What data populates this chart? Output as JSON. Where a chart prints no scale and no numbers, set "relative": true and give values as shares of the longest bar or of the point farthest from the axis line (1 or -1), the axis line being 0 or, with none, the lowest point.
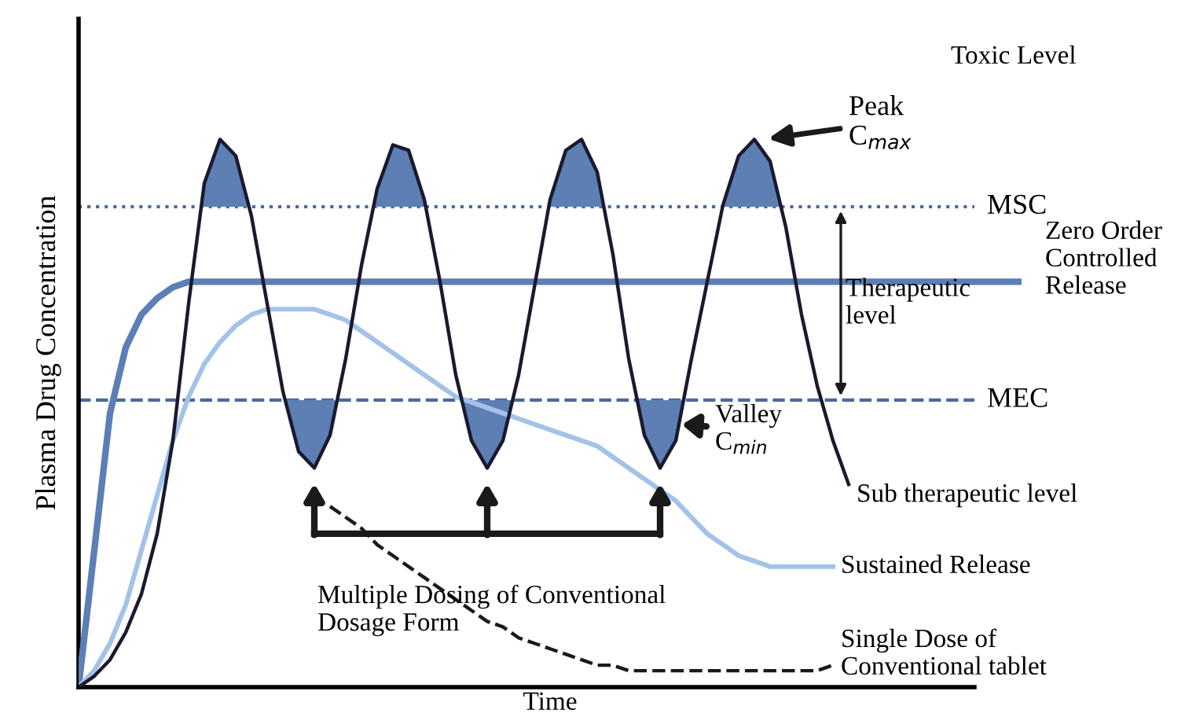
{
  "chart_data": {
    "type": "line",
    "relative": true,
    "xlabel": "Time",
    "ylabel": "Plasma Drug Concentration",
    "categories": [
      null,
      null,
      null,
      null,
      null,
      null,
      null,
      null,
      null,
      null,
      null,
      null,
      null,
      null,
      null,
      null,
      null,
      null,
      null,
      null,
      null,
      null,
      null,
      null,
      null,
      null,
      null,
      null,
      null,
      null,
      null,
      null,
      null,
      null,
      null,
      null,
      null,
      null,
      null,
      null,
      null,
      null,
      null,
      null,
      null,
      null,
      null,
      null,
      null,
      null,
      null,
      null,
      null,
      null,
      null,
      null,
      null,
      null,
      null,
      null,
      null
    ],
    "series": [
      {
        "name": "Zero Order\nControlled\nRelease",
        "color": "#5b7fb6",
        "values": [
          0,
          0.25,
          0.5,
          0.62,
          0.68,
          0.71,
          0.73,
          0.74,
          0.74,
          0.74,
          0.74,
          0.74,
          0.74,
          0.74,
          0.74,
          0.74,
          0.74,
          0.74,
          0.74,
          0.74,
          0.74,
          0.74,
          0.74,
          0.74,
          0.74,
          0.74,
          0.74,
          0.74,
          0.74,
          0.74,
          0.74,
          0.74,
          0.74,
          0.74,
          0.74,
          0.74,
          0.74,
          0.74,
          0.74,
          0.74,
          0.74,
          0.74,
          0.74,
          0.74,
          0.74,
          0.74,
          0.74,
          0.74,
          0.74,
          0.74,
          0.74,
          0.74,
          0.74,
          0.74,
          0.74,
          0.74,
          0.74,
          0.74,
          0.74,
          0.74,
          0.74
        ]
      },
      {
        "name": "Sustained Release",
        "color": "#a4c2e8",
        "values": [
          0,
          0.03,
          0.08,
          0.15,
          0.25,
          0.35,
          0.45,
          0.53,
          0.59,
          0.63,
          0.66,
          0.68,
          0.69,
          0.69,
          0.69,
          0.69,
          0.68,
          0.67,
          0.65,
          0.63,
          0.61,
          0.59,
          0.57,
          0.55,
          0.53,
          0.52,
          0.51,
          0.5,
          0.49,
          0.48,
          0.47,
          0.46,
          0.45,
          0.44,
          0.42,
          0.4,
          0.38,
          0.36,
          0.34,
          0.31,
          0.28,
          0.26,
          0.24,
          0.23,
          0.22,
          0.22,
          0.22,
          0.22,
          0.22,
          null,
          null,
          null,
          null,
          null,
          null,
          null,
          null,
          null,
          null,
          null,
          null
        ]
      },
      {
        "name": "Single Dose of\nConventional tablet",
        "color": "#1a1a1a",
        "line_style": "dashed",
        "values": [
          null,
          null,
          null,
          null,
          null,
          null,
          null,
          null,
          null,
          null,
          null,
          null,
          null,
          null,
          null,
          null,
          0.33,
          0.31,
          0.29,
          0.26,
          0.24,
          0.22,
          0.2,
          0.18,
          0.16,
          0.14,
          0.12,
          0.11,
          0.09,
          0.08,
          0.07,
          0.06,
          0.05,
          0.04,
          0.04,
          0.03,
          0.03,
          0.03,
          0.03,
          0.03,
          0.03,
          0.03,
          0.03,
          0.03,
          0.03,
          0.03,
          0.03,
          0.03,
          0.04,
          null,
          null,
          null,
          null,
          null,
          null,
          null,
          null,
          null,
          null,
          null,
          null
        ]
      },
      {
        "color": "#1a1a2e",
        "values": [
          0,
          0.02,
          0.05,
          0.1,
          0.17,
          0.28,
          0.45,
          0.7,
          0.92,
          1.0,
          0.97,
          0.86,
          0.7,
          0.54,
          0.43,
          0.4,
          0.46,
          0.6,
          0.77,
          0.91,
          0.99,
          0.98,
          0.89,
          0.74,
          0.57,
          0.45,
          0.4,
          0.45,
          0.57,
          0.73,
          0.89,
          0.98,
          1.0,
          0.94,
          0.79,
          0.6,
          0.46,
          0.4,
          0.45,
          0.6,
          0.74,
          0.88,
          0.97,
          1.0,
          0.96,
          0.84,
          0.68,
          0.55,
          0.45,
          0.37,
          null,
          null,
          null,
          null,
          null,
          null,
          null,
          null,
          null,
          null,
          null
        ]
      }
    ],
    "ref_lines": [
      {
        "axis": "y",
        "value": 0.877,
        "label": "MSC",
        "color": "#4a6a9a",
        "line_style": "dotted"
      },
      {
        "axis": "y",
        "value": 0.524,
        "label": "MEC",
        "color": "#4a6a9a",
        "line_style": "dashed"
      }
    ],
    "annotations": [
      "Toxic Level",
      "Peak\nC$_{max}$",
      "Valley\nC$_{min}$",
      "Therapeutic\nlevel",
      "Sub therapeutic level",
      "Multiple Dosing of Conventional\nDosage Form"
    ],
    "legend": false
  }
}
